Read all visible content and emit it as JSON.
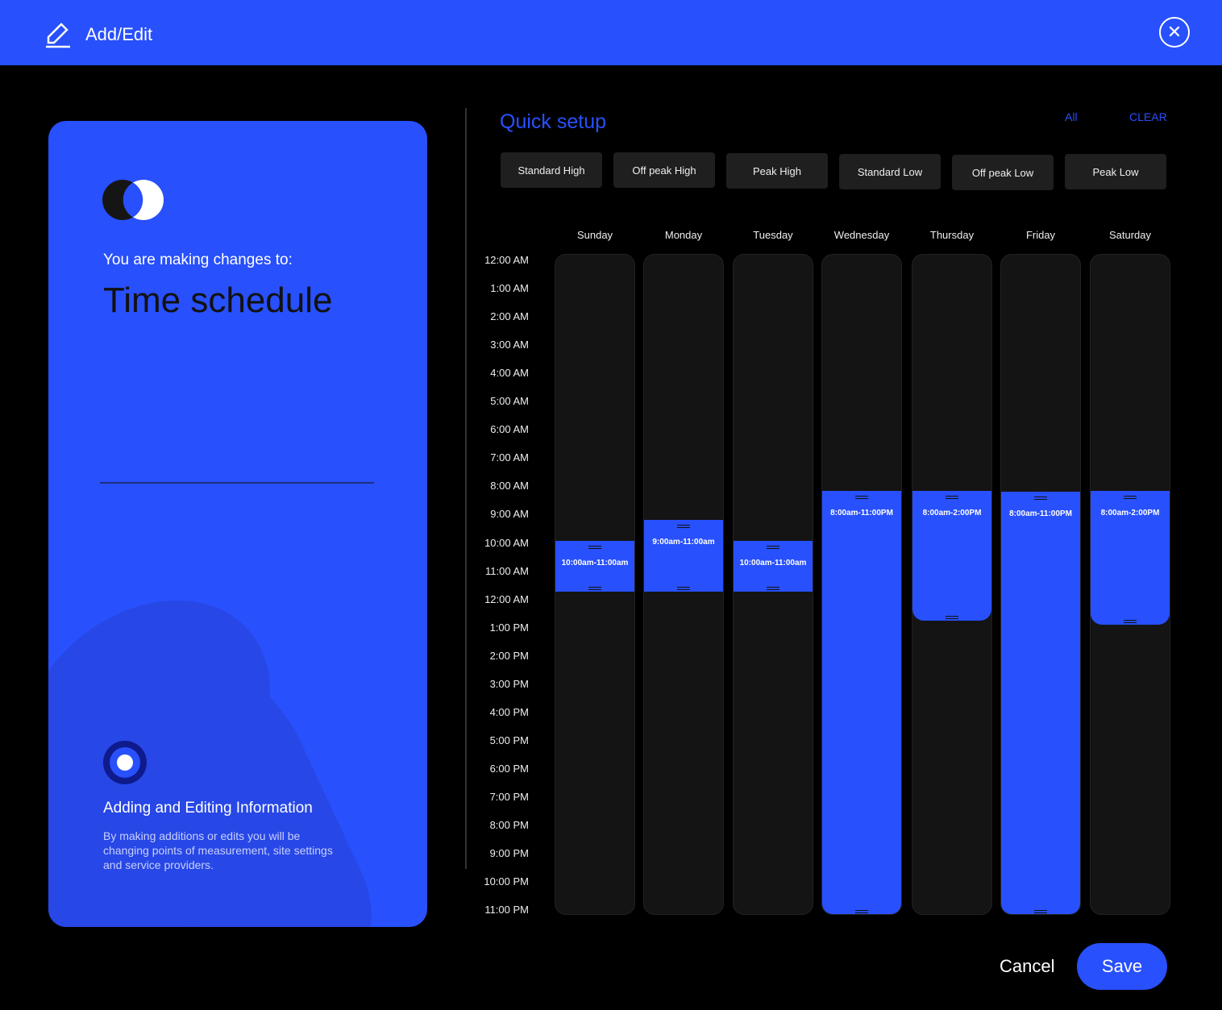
{
  "header": {
    "title": "Add/Edit",
    "edit_icon": "pencil-icon",
    "close_icon": "close-icon"
  },
  "card": {
    "changes_label": "You are making changes to:",
    "name": "Time schedule",
    "info_title": "Adding and Editing Information",
    "info_text": "By making additions or edits you will be changing points of measurement, site settings and service providers."
  },
  "quick_setup": {
    "title": "Quick setup",
    "all": "All",
    "clear": "CLEAR",
    "presets": [
      "Standard High",
      "Off peak High",
      "Peak High",
      "Standard Low",
      "Off peak Low",
      "Peak Low"
    ]
  },
  "days": [
    "Sunday",
    "Monday",
    "Tuesday",
    "Wednesday",
    "Thursday",
    "Friday",
    "Saturday"
  ],
  "times": [
    "12:00 AM",
    "1:00 AM",
    "2:00 AM",
    "3:00 AM",
    "4:00 AM",
    "5:00 AM",
    "6:00 AM",
    "7:00 AM",
    "8:00 AM",
    "9:00 AM",
    "10:00 AM",
    "11:00 AM",
    "12:00 AM",
    "1:00 PM",
    "2:00 PM",
    "3:00 PM",
    "4:00 PM",
    "5:00 PM",
    "6:00 PM",
    "7:00 PM",
    "8:00 PM",
    "9:00 PM",
    "10:00 PM",
    "11:00 PM"
  ],
  "blocks": [
    "10:00am-11:00am",
    "9:00am-11:00am",
    "10:00am-11:00am",
    "8:00am-11:00PM",
    "8:00am-2:00PM",
    "8:00am-11:00PM",
    "8:00am-2:00PM"
  ],
  "actions": {
    "cancel": "Cancel",
    "save": "Save"
  },
  "colors": {
    "accent": "#2850fc",
    "background": "#000000",
    "column": "#141414"
  }
}
